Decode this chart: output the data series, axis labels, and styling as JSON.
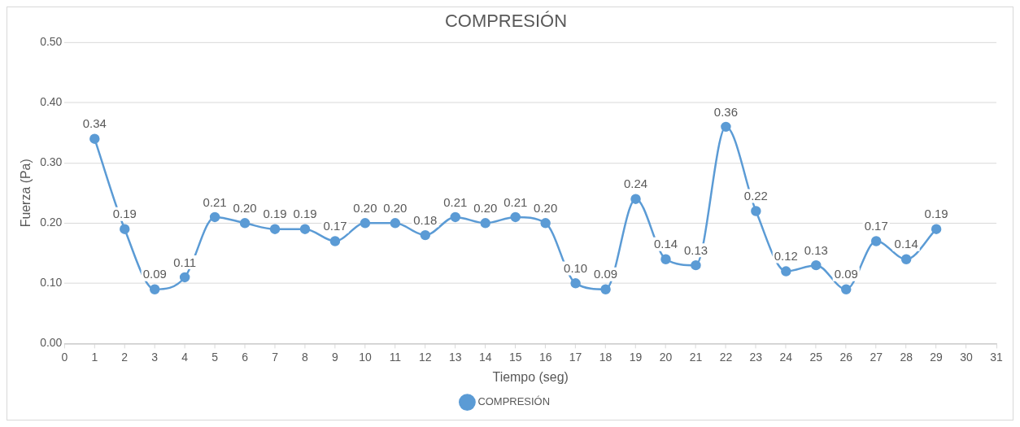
{
  "chart_data": {
    "type": "line",
    "title": "COMPRESIÓN",
    "xlabel": "Tiempo (seg)",
    "ylabel": "Fuerza (Pa)",
    "x": [
      1,
      2,
      3,
      4,
      5,
      6,
      7,
      8,
      9,
      10,
      11,
      12,
      13,
      14,
      15,
      16,
      17,
      18,
      19,
      20,
      21,
      22,
      23,
      24,
      25,
      26,
      27,
      28,
      29
    ],
    "series": [
      {
        "name": "COMPRESIÓN",
        "color": "#5b9bd5",
        "values": [
          0.34,
          0.19,
          0.09,
          0.11,
          0.21,
          0.2,
          0.19,
          0.19,
          0.17,
          0.2,
          0.2,
          0.18,
          0.21,
          0.2,
          0.21,
          0.2,
          0.1,
          0.09,
          0.24,
          0.14,
          0.13,
          0.36,
          0.22,
          0.12,
          0.13,
          0.09,
          0.17,
          0.14,
          0.19
        ],
        "value_labels": [
          "0.34",
          "0.19",
          "0.09",
          "0.11",
          "0.21",
          "0.20",
          "0.19",
          "0.19",
          "0.17",
          "0.20",
          "0.20",
          "0.18",
          "0.21",
          "0.20",
          "0.21",
          "0.20",
          "0.10",
          "0.09",
          "0.24",
          "0.14",
          "0.13",
          "0.36",
          "0.22",
          "0.12",
          "0.13",
          "0.09",
          "0.17",
          "0.14",
          "0.19"
        ]
      }
    ],
    "xlim": [
      0,
      31
    ],
    "xticks": [
      0,
      1,
      2,
      3,
      4,
      5,
      6,
      7,
      8,
      9,
      10,
      11,
      12,
      13,
      14,
      15,
      16,
      17,
      18,
      19,
      20,
      21,
      22,
      23,
      24,
      25,
      26,
      27,
      28,
      29,
      30,
      31
    ],
    "ylim": [
      0,
      0.5
    ],
    "yticks": [
      {
        "value": 0,
        "label": "0.00"
      },
      {
        "value": 0.1,
        "label": "0.10"
      },
      {
        "value": 0.2,
        "label": "0.20"
      },
      {
        "value": 0.3,
        "label": "0.30"
      },
      {
        "value": 0.4,
        "label": "0.40"
      },
      {
        "value": 0.5,
        "label": "0.50"
      }
    ],
    "grid": "y",
    "legend": "bottom",
    "marker": "circle",
    "line_style": "solid"
  }
}
